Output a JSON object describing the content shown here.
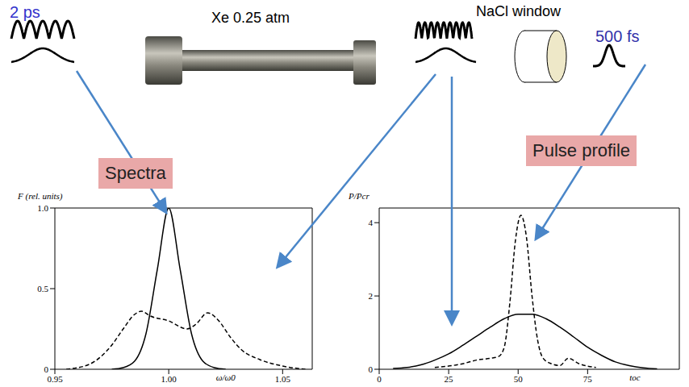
{
  "labels": {
    "input_pulse": "2 ps",
    "cell": "Xe 0.25 atm",
    "window": "NaCl window",
    "output_pulse": "500 fs",
    "spectra_label": "Spectra",
    "profile_label": "Pulse profile"
  },
  "chart_data": [
    {
      "type": "line",
      "ylabel": "F (rel. units)",
      "xlabel": "ω/ω0",
      "xlim": [
        0.95,
        1.063
      ],
      "xticks": [
        {
          "value": 0.95,
          "label": "0.95"
        },
        {
          "value": 1,
          "label": "1.00"
        },
        {
          "value": 1.05,
          "label": "1.05"
        }
      ],
      "ylim": [
        0,
        1
      ],
      "yticks": [
        0,
        0.5,
        {
          "value": 1,
          "label": "1.0"
        }
      ],
      "grid": false,
      "series": [
        {
          "color": "#000000",
          "line_style": "solid",
          "x": [
            0.975,
            0.98,
            0.985,
            0.99,
            0.995,
            1.0,
            1.005,
            1.01,
            1.015,
            1.02,
            1.025
          ],
          "values": [
            0,
            0.01,
            0.05,
            0.22,
            0.62,
            1.0,
            0.62,
            0.22,
            0.05,
            0.01,
            0
          ]
        },
        {
          "color": "#000000",
          "line_style": "dashed",
          "x": [
            0.955,
            0.965,
            0.975,
            0.98,
            0.985,
            0.988,
            0.992,
            1.0,
            1.008,
            1.012,
            1.017,
            1.022,
            1.027,
            1.032,
            1.04,
            1.05,
            1.06
          ],
          "values": [
            0,
            0.03,
            0.15,
            0.25,
            0.34,
            0.36,
            0.33,
            0.3,
            0.25,
            0.28,
            0.35,
            0.3,
            0.2,
            0.12,
            0.06,
            0.02,
            0
          ]
        }
      ]
    },
    {
      "type": "line",
      "ylabel": "P/Pcr",
      "xlabel": "toc",
      "xlim": [
        0,
        108
      ],
      "xticks": [
        0,
        25,
        50,
        75
      ],
      "ylim": [
        0,
        4.4
      ],
      "yticks": [
        0,
        2,
        4
      ],
      "grid": false,
      "series": [
        {
          "color": "#000000",
          "line_style": "solid",
          "x": [
            5,
            10,
            15,
            20,
            25,
            30,
            35,
            40,
            45,
            50,
            55,
            60,
            65,
            70,
            75,
            80,
            85,
            90,
            95,
            100
          ],
          "values": [
            0.02,
            0.05,
            0.12,
            0.25,
            0.42,
            0.65,
            0.9,
            1.15,
            1.38,
            1.5,
            1.5,
            1.38,
            1.15,
            0.88,
            0.6,
            0.38,
            0.2,
            0.1,
            0.04,
            0.01
          ]
        },
        {
          "color": "#000000",
          "line_style": "dashed",
          "x": [
            20,
            30,
            35,
            40,
            43,
            45,
            47,
            49,
            51,
            53,
            55,
            57,
            59,
            62,
            65,
            68,
            72,
            78
          ],
          "values": [
            0.05,
            0.15,
            0.25,
            0.3,
            0.35,
            0.6,
            1.8,
            3.5,
            4.2,
            3.6,
            2.0,
            0.8,
            0.3,
            0.15,
            0.1,
            0.3,
            0.15,
            0.05
          ]
        }
      ]
    }
  ]
}
